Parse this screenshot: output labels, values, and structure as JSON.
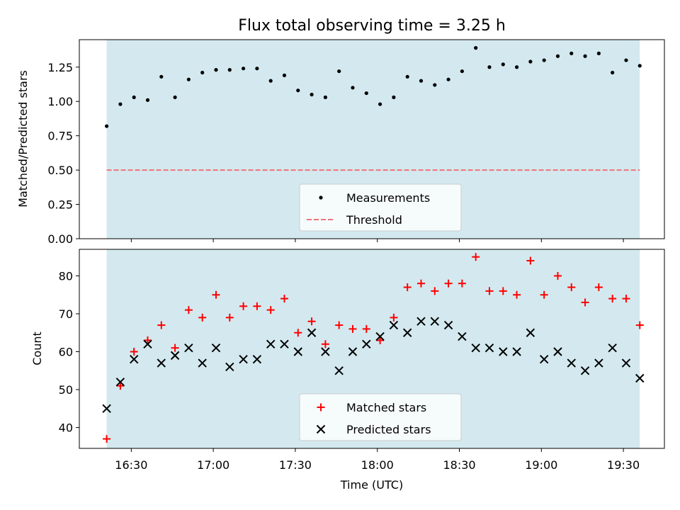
{
  "chart_data": [
    {
      "type": "scatter",
      "title": "Flux total observing time = 3.25 h",
      "xlabel": "",
      "ylabel": "Matched/Predicted stars",
      "ylim": [
        0.0,
        1.45
      ],
      "yticks": [
        0.0,
        0.25,
        0.5,
        0.75,
        1.0,
        1.25
      ],
      "ytick_labels": [
        "0.00",
        "0.25",
        "0.50",
        "0.75",
        "1.00",
        "1.25"
      ],
      "x_unit": "Time (UTC)",
      "xlim": [
        "16:11",
        "19:45"
      ],
      "xticks": [
        "16:30",
        "17:00",
        "17:30",
        "18:00",
        "18:30",
        "19:00",
        "19:30"
      ],
      "shaded_span": {
        "start": "16:21",
        "end": "19:36",
        "color": "#d3e9ef"
      },
      "legend_position": "lower center",
      "grid": false,
      "series": [
        {
          "name": "Measurements",
          "kind": "points",
          "color": "#000000",
          "x": [
            "16:21",
            "16:26",
            "16:31",
            "16:36",
            "16:41",
            "16:46",
            "16:51",
            "16:56",
            "17:01",
            "17:06",
            "17:11",
            "17:16",
            "17:21",
            "17:26",
            "17:31",
            "17:36",
            "17:41",
            "17:46",
            "17:51",
            "17:56",
            "18:01",
            "18:06",
            "18:11",
            "18:16",
            "18:21",
            "18:26",
            "18:31",
            "18:36",
            "18:41",
            "18:46",
            "18:51",
            "18:56",
            "19:01",
            "19:06",
            "19:11",
            "19:16",
            "19:21",
            "19:26",
            "19:31",
            "19:36"
          ],
          "y": [
            0.82,
            0.98,
            1.03,
            1.01,
            1.18,
            1.03,
            1.16,
            1.21,
            1.23,
            1.23,
            1.24,
            1.24,
            1.15,
            1.19,
            1.08,
            1.05,
            1.03,
            1.22,
            1.1,
            1.06,
            0.98,
            1.03,
            1.18,
            1.15,
            1.12,
            1.16,
            1.22,
            1.39,
            1.25,
            1.27,
            1.25,
            1.29,
            1.3,
            1.33,
            1.35,
            1.33,
            1.35,
            1.21,
            1.3,
            1.26
          ]
        },
        {
          "name": "Threshold",
          "kind": "hline",
          "color": "#f07478",
          "y": 0.5
        }
      ]
    },
    {
      "type": "scatter",
      "title": "",
      "xlabel": "Time (UTC)",
      "ylabel": "Count",
      "ylim": [
        34.5,
        87
      ],
      "yticks": [
        40,
        50,
        60,
        70,
        80
      ],
      "ytick_labels": [
        "40",
        "50",
        "60",
        "70",
        "80"
      ],
      "xlim": [
        "16:11",
        "19:45"
      ],
      "xticks": [
        "16:30",
        "17:00",
        "17:30",
        "18:00",
        "18:30",
        "19:00",
        "19:30"
      ],
      "xtick_labels": [
        "16:30",
        "17:00",
        "17:30",
        "18:00",
        "18:30",
        "19:00",
        "19:30"
      ],
      "shaded_span": {
        "start": "16:21",
        "end": "19:36",
        "color": "#d3e9ef"
      },
      "legend_position": "lower center",
      "grid": false,
      "series": [
        {
          "name": "Matched stars",
          "marker": "plus",
          "color": "#ff0000",
          "x": [
            "16:21",
            "16:26",
            "16:31",
            "16:36",
            "16:41",
            "16:46",
            "16:51",
            "16:56",
            "17:01",
            "17:06",
            "17:11",
            "17:16",
            "17:21",
            "17:26",
            "17:31",
            "17:36",
            "17:41",
            "17:46",
            "17:51",
            "17:56",
            "18:01",
            "18:06",
            "18:11",
            "18:16",
            "18:21",
            "18:26",
            "18:31",
            "18:36",
            "18:41",
            "18:46",
            "18:51",
            "18:56",
            "19:01",
            "19:06",
            "19:11",
            "19:16",
            "19:21",
            "19:26",
            "19:31",
            "19:36"
          ],
          "y": [
            37,
            51,
            60,
            63,
            67,
            61,
            71,
            69,
            75,
            69,
            72,
            72,
            71,
            74,
            65,
            68,
            62,
            67,
            66,
            66,
            63,
            69,
            77,
            78,
            76,
            78,
            78,
            85,
            76,
            76,
            75,
            84,
            75,
            80,
            77,
            73,
            77,
            74,
            74,
            67
          ]
        },
        {
          "name": "Predicted stars",
          "marker": "x",
          "color": "#000000",
          "x": [
            "16:21",
            "16:26",
            "16:31",
            "16:36",
            "16:41",
            "16:46",
            "16:51",
            "16:56",
            "17:01",
            "17:06",
            "17:11",
            "17:16",
            "17:21",
            "17:26",
            "17:31",
            "17:36",
            "17:41",
            "17:46",
            "17:51",
            "17:56",
            "18:01",
            "18:06",
            "18:11",
            "18:16",
            "18:21",
            "18:26",
            "18:31",
            "18:36",
            "18:41",
            "18:46",
            "18:51",
            "18:56",
            "19:01",
            "19:06",
            "19:11",
            "19:16",
            "19:21",
            "19:26",
            "19:31",
            "19:36"
          ],
          "y": [
            45,
            52,
            58,
            62,
            57,
            59,
            61,
            57,
            61,
            56,
            58,
            58,
            62,
            62,
            60,
            65,
            60,
            55,
            60,
            62,
            64,
            67,
            65,
            68,
            68,
            67,
            64,
            61,
            61,
            60,
            60,
            65,
            58,
            60,
            57,
            55,
            57,
            61,
            57,
            53
          ]
        }
      ]
    }
  ]
}
